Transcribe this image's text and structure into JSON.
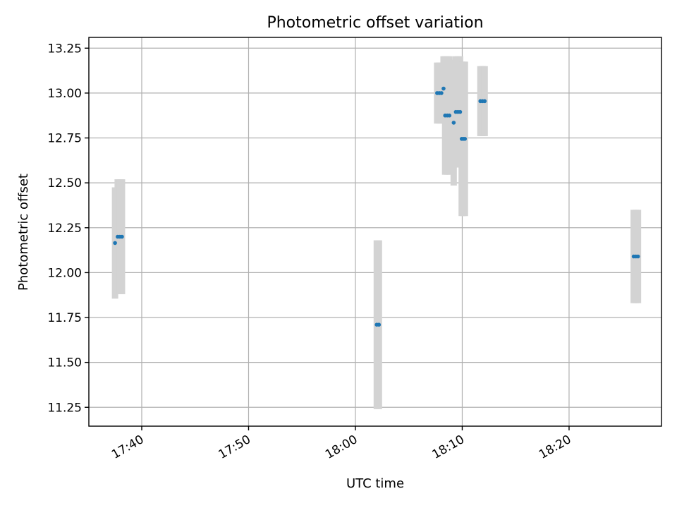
{
  "chart_data": {
    "type": "scatter",
    "title": "Photometric offset variation",
    "xlabel": "UTC time",
    "ylabel": "Photometric offset",
    "x_range_minutes": [
      -14.95,
      38.65
    ],
    "ylim": [
      11.145,
      13.31
    ],
    "x_ticks": [
      {
        "value": -10,
        "label": "17:40"
      },
      {
        "value": 0,
        "label": "17:50"
      },
      {
        "value": 10,
        "label": "18:00"
      },
      {
        "value": 20,
        "label": "18:10"
      },
      {
        "value": 30,
        "label": "18:20"
      }
    ],
    "y_ticks": [
      {
        "value": 11.25,
        "label": "11.25"
      },
      {
        "value": 11.5,
        "label": "11.50"
      },
      {
        "value": 11.75,
        "label": "11.75"
      },
      {
        "value": 12.0,
        "label": "12.00"
      },
      {
        "value": 12.25,
        "label": "12.25"
      },
      {
        "value": 12.5,
        "label": "12.50"
      },
      {
        "value": 12.75,
        "label": "12.75"
      },
      {
        "value": 13.0,
        "label": "13.00"
      },
      {
        "value": 13.25,
        "label": "13.25"
      }
    ],
    "grid": true,
    "points": [
      {
        "x": -12.5,
        "y": 12.165,
        "err": 0.31
      },
      {
        "x": -12.25,
        "y": 12.2,
        "err": 0.32
      },
      {
        "x": -12.05,
        "y": 12.2,
        "err": 0.32
      },
      {
        "x": -11.85,
        "y": 12.2,
        "err": 0.32
      },
      {
        "x": 12.0,
        "y": 11.71,
        "err": 0.47
      },
      {
        "x": 12.2,
        "y": 11.71,
        "err": 0.47
      },
      {
        "x": 17.65,
        "y": 13.0,
        "err": 0.17
      },
      {
        "x": 17.85,
        "y": 13.0,
        "err": 0.17
      },
      {
        "x": 18.05,
        "y": 13.0,
        "err": 0.17
      },
      {
        "x": 18.25,
        "y": 13.025,
        "err": 0.18
      },
      {
        "x": 18.4,
        "y": 12.875,
        "err": 0.33
      },
      {
        "x": 18.6,
        "y": 12.875,
        "err": 0.33
      },
      {
        "x": 18.8,
        "y": 12.875,
        "err": 0.33
      },
      {
        "x": 19.2,
        "y": 12.835,
        "err": 0.35
      },
      {
        "x": 19.4,
        "y": 12.895,
        "err": 0.31
      },
      {
        "x": 19.6,
        "y": 12.895,
        "err": 0.31
      },
      {
        "x": 19.8,
        "y": 12.895,
        "err": 0.31
      },
      {
        "x": 19.95,
        "y": 12.745,
        "err": 0.43
      },
      {
        "x": 20.1,
        "y": 12.745,
        "err": 0.43
      },
      {
        "x": 20.25,
        "y": 12.745,
        "err": 0.43
      },
      {
        "x": 21.7,
        "y": 12.955,
        "err": 0.195
      },
      {
        "x": 21.9,
        "y": 12.955,
        "err": 0.195
      },
      {
        "x": 22.1,
        "y": 12.955,
        "err": 0.195
      },
      {
        "x": 36.05,
        "y": 12.09,
        "err": 0.26
      },
      {
        "x": 36.25,
        "y": 12.09,
        "err": 0.26
      },
      {
        "x": 36.45,
        "y": 12.09,
        "err": 0.26
      }
    ]
  }
}
